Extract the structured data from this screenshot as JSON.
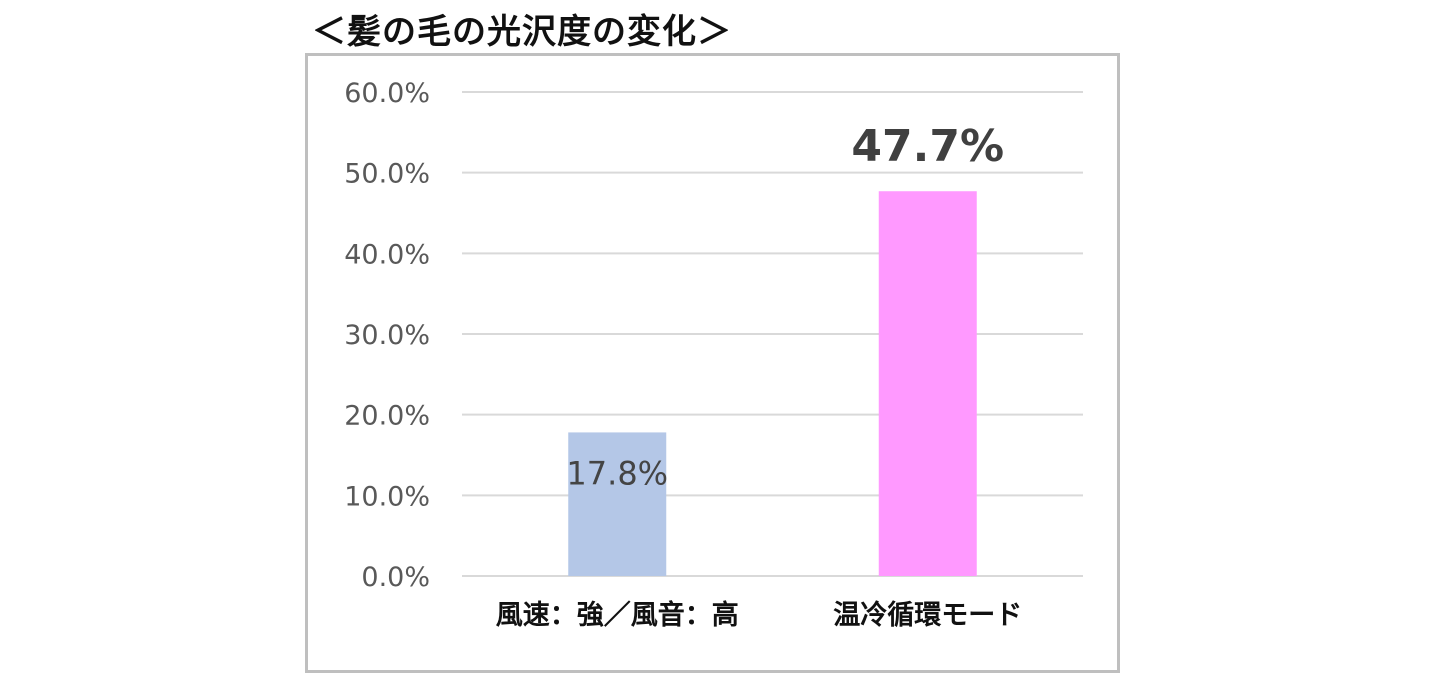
{
  "chart_data": {
    "type": "bar",
    "title": "＜髪の毛の光沢度の変化＞",
    "xlabel": "",
    "ylabel": "",
    "ylim": [
      0,
      60
    ],
    "y_ticks": [
      "0.0%",
      "10.0%",
      "20.0%",
      "30.0%",
      "40.0%",
      "50.0%",
      "60.0%"
    ],
    "grid": true,
    "categories": [
      "風速：強／風音：高",
      "温冷循環モード"
    ],
    "values": [
      17.8,
      47.7
    ],
    "data_labels": [
      "17.8%",
      "47.7%"
    ],
    "colors": [
      "#b4c7e7",
      "#ff99ff"
    ]
  }
}
